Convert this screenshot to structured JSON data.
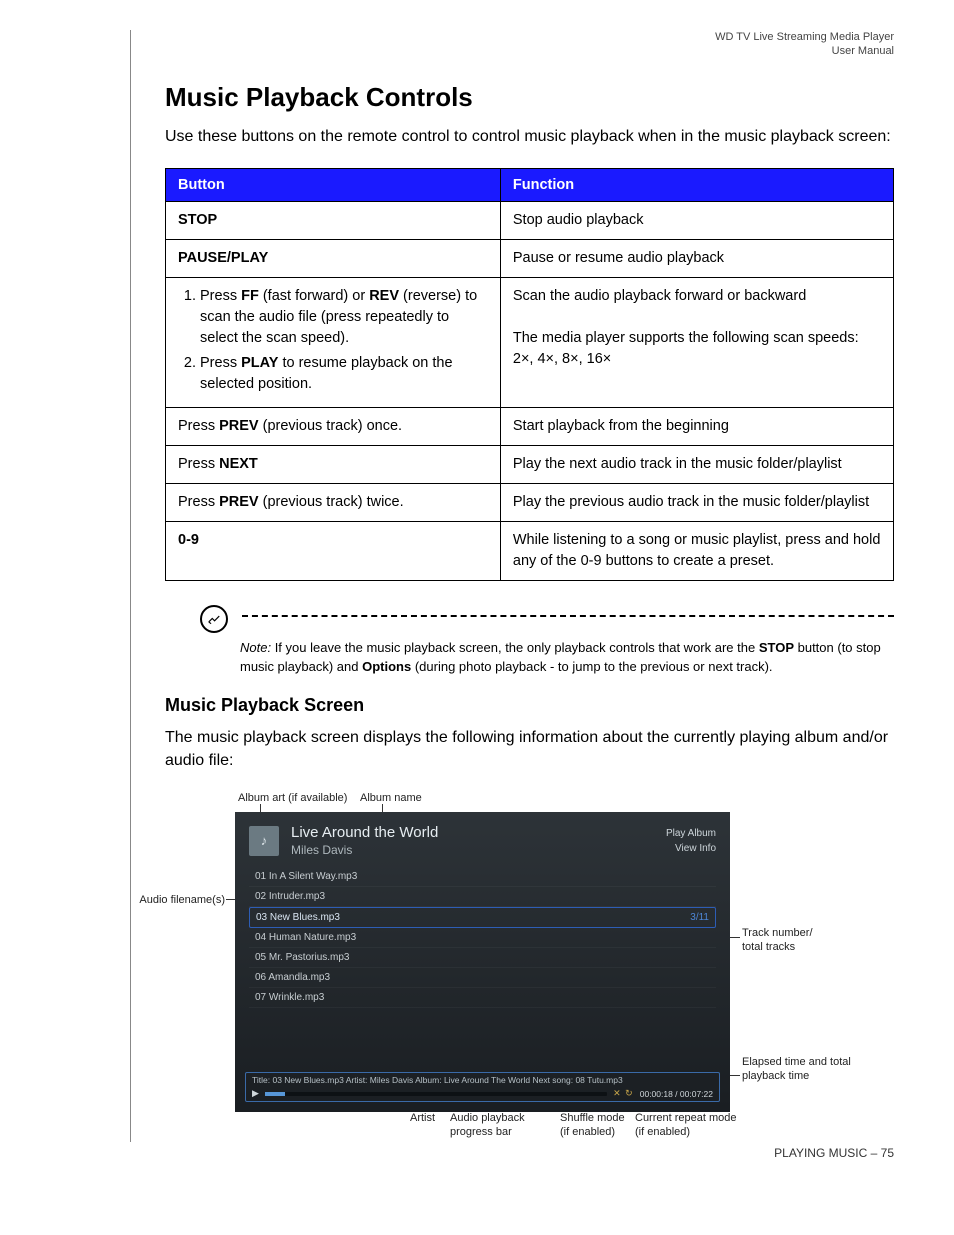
{
  "header": {
    "line1": "WD TV Live Streaming Media Player",
    "line2": "User Manual"
  },
  "title": "Music Playback Controls",
  "intro": "Use these buttons on the remote control to control music playback when in the music playback screen:",
  "table": {
    "col1": "Button",
    "col2": "Function",
    "header_bg": "#1a1aff",
    "header_color": "#ffffff",
    "rows": [
      {
        "button_html": "<span class='bold'>STOP</span>",
        "function_html": "Stop audio playback"
      },
      {
        "button_html": "<span class='bold'>PAUSE/PLAY</span>",
        "function_html": "Pause or resume audio playback"
      },
      {
        "button_html": "<ol class='steps'><li>Press <span class='bold'>FF</span> (fast forward) or <span class='bold'>REV</span> (reverse) to scan the audio file (press repeatedly to select the scan speed).</li><li>Press <span class='bold'>PLAY</span> to resume playback on the selected position.</li></ol>",
        "function_html": "Scan the audio playback forward or backward<br><br>The media player supports the following scan speeds: 2×, 4×, 8×, 16×"
      },
      {
        "button_html": "Press <span class='bold'>PREV</span> (previous track) once.",
        "function_html": "Start playback from the beginning"
      },
      {
        "button_html": "Press <span class='bold'>NEXT</span>",
        "function_html": "Play the next audio track in the music folder/playlist"
      },
      {
        "button_html": "Press <span class='bold'>PREV</span> (previous track) twice.",
        "function_html": "Play the previous audio track in the music folder/playlist"
      },
      {
        "button_html": "<span class='bold'>0-9</span>",
        "function_html": "While listening to a song or music playlist, press and hold any of the 0-9 buttons to create a preset."
      }
    ]
  },
  "note_html": "<span class='italic'>Note:</span> If you leave the music playback screen, the only playback controls that work are the <span class='bold'>STOP</span> button (to stop music playback) and <span class='bold'>Options</span> (during photo playback - to jump to the previous or next track).",
  "section2_title": "Music Playback Screen",
  "section2_intro": "The music playback screen displays the following information about the currently playing album and/or audio file:",
  "labels": {
    "album_art": "Album art (if available)",
    "album_name": "Album name",
    "audio_filenames": "Audio filename(s)",
    "track_total": "Track number/\ntotal tracks",
    "elapsed": "Elapsed time and total playback time",
    "artist": "Artist",
    "progress": "Audio playback\nprogress bar",
    "shuffle": "Shuffle mode\n(if enabled)",
    "repeat": "Current repeat mode\n(if enabled)"
  },
  "player": {
    "album": "Live Around the World",
    "artist": "Miles Davis",
    "menu1": "Play Album",
    "menu2": "View Info",
    "tracks": [
      "01 In A Silent Way.mp3",
      "02 Intruder.mp3",
      "03 New Blues.mp3",
      "04 Human Nature.mp3",
      "05 Mr. Pastorius.mp3",
      "06 Amandla.mp3",
      "07 Wrinkle.mp3"
    ],
    "selected_index": 2,
    "track_count": "3/11",
    "meta": "Title: 03 New Blues.mp3   Artist: Miles Davis   Album: Live Around The World   Next song: 08 Tutu.mp3",
    "time": "00:00:18 / 00:07:22"
  },
  "footer": {
    "section": "PLAYING MUSIC",
    "sep": " – ",
    "page": "75"
  }
}
